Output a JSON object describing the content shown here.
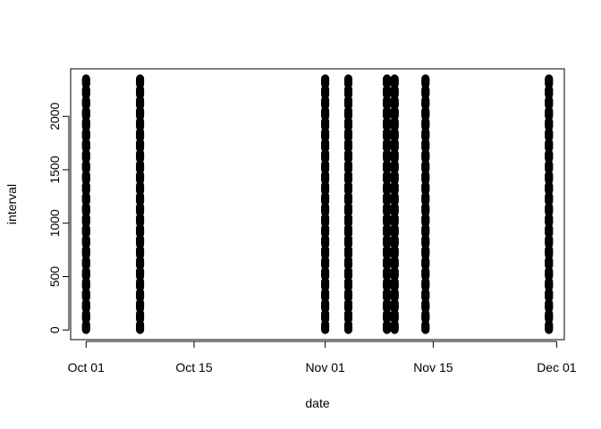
{
  "chart_data": {
    "type": "scatter",
    "title": "",
    "xlabel": "date",
    "ylabel": "interval",
    "x_ticks": [
      "Oct 01",
      "Oct 15",
      "Nov 01",
      "Nov 15",
      "Dec 01"
    ],
    "y_ticks": [
      "0",
      "500",
      "1000",
      "1500",
      "2000"
    ],
    "xlim": [
      "2012-09-29",
      "2012-12-02"
    ],
    "ylim": [
      -90,
      2445
    ],
    "grid": false,
    "legend": "none",
    "marker_color": "#000000",
    "dates": [
      "2012-10-01",
      "2012-10-08",
      "2012-11-01",
      "2012-11-04",
      "2012-11-09",
      "2012-11-10",
      "2012-11-14",
      "2012-11-30"
    ],
    "interval_values_per_date": [
      0,
      5,
      10,
      15,
      20,
      25,
      30,
      35,
      40,
      45,
      50,
      55,
      100,
      105,
      110,
      115,
      120,
      125,
      130,
      135,
      140,
      145,
      150,
      155,
      200,
      205,
      210,
      215,
      220,
      225,
      230,
      235,
      240,
      245,
      250,
      255,
      300,
      305,
      310,
      315,
      320,
      325,
      330,
      335,
      340,
      345,
      350,
      355,
      400,
      405,
      410,
      415,
      420,
      425,
      430,
      435,
      440,
      445,
      450,
      455,
      500,
      505,
      510,
      515,
      520,
      525,
      530,
      535,
      540,
      545,
      550,
      555,
      600,
      605,
      610,
      615,
      620,
      625,
      630,
      635,
      640,
      645,
      650,
      655,
      700,
      705,
      710,
      715,
      720,
      725,
      730,
      735,
      740,
      745,
      750,
      755,
      800,
      805,
      810,
      815,
      820,
      825,
      830,
      835,
      840,
      845,
      850,
      855,
      900,
      905,
      910,
      915,
      920,
      925,
      930,
      935,
      940,
      945,
      950,
      955,
      1000,
      1005,
      1010,
      1015,
      1020,
      1025,
      1030,
      1035,
      1040,
      1045,
      1050,
      1055,
      1100,
      1105,
      1110,
      1115,
      1120,
      1125,
      1130,
      1135,
      1140,
      1145,
      1150,
      1155,
      1200,
      1205,
      1210,
      1215,
      1220,
      1225,
      1230,
      1235,
      1240,
      1245,
      1250,
      1255,
      1300,
      1305,
      1310,
      1315,
      1320,
      1325,
      1330,
      1335,
      1340,
      1345,
      1350,
      1355,
      1400,
      1405,
      1410,
      1415,
      1420,
      1425,
      1430,
      1435,
      1440,
      1445,
      1450,
      1455,
      1500,
      1505,
      1510,
      1515,
      1520,
      1525,
      1530,
      1535,
      1540,
      1545,
      1550,
      1555,
      1600,
      1605,
      1610,
      1615,
      1620,
      1625,
      1630,
      1635,
      1640,
      1645,
      1650,
      1655,
      1700,
      1705,
      1710,
      1715,
      1720,
      1725,
      1730,
      1735,
      1740,
      1745,
      1750,
      1755,
      1800,
      1805,
      1810,
      1815,
      1820,
      1825,
      1830,
      1835,
      1840,
      1845,
      1850,
      1855,
      1900,
      1905,
      1910,
      1915,
      1920,
      1925,
      1930,
      1935,
      1940,
      1945,
      1950,
      1955,
      2000,
      2005,
      2010,
      2015,
      2020,
      2025,
      2030,
      2035,
      2040,
      2045,
      2050,
      2055,
      2100,
      2105,
      2110,
      2115,
      2120,
      2125,
      2130,
      2135,
      2140,
      2145,
      2150,
      2155,
      2200,
      2205,
      2210,
      2215,
      2220,
      2225,
      2230,
      2235,
      2240,
      2245,
      2250,
      2255,
      2300,
      2305,
      2310,
      2315,
      2320,
      2325,
      2330,
      2335,
      2340,
      2345,
      2350,
      2355
    ]
  }
}
